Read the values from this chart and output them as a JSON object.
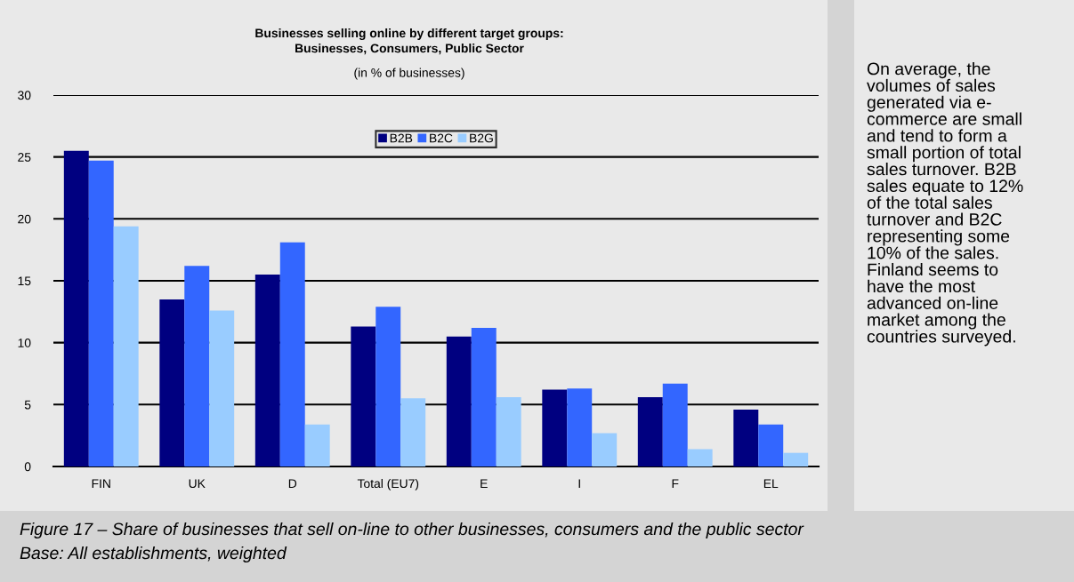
{
  "chart_data": {
    "type": "bar",
    "title": "Businesses selling online by different target groups:\nBusinesses, Consumers, Public Sector",
    "subtitle": "(in % of businesses)",
    "categories": [
      "FIN",
      "UK",
      "D",
      "Total (EU7)",
      "E",
      "I",
      "F",
      "EL"
    ],
    "series": [
      {
        "name": "B2B",
        "color": "#000080",
        "values": [
          25.5,
          13.5,
          15.5,
          11.3,
          10.5,
          6.2,
          5.6,
          4.6
        ]
      },
      {
        "name": "B2C",
        "color": "#3366ff",
        "values": [
          24.7,
          16.2,
          18.1,
          12.9,
          11.2,
          6.3,
          6.7,
          3.4
        ]
      },
      {
        "name": "B2G",
        "color": "#99ccff",
        "values": [
          19.4,
          12.6,
          3.4,
          5.5,
          5.6,
          2.7,
          1.4,
          1.1
        ]
      }
    ],
    "ylim": [
      0,
      30
    ],
    "yticks": [
      0,
      5,
      10,
      15,
      20,
      25,
      30
    ],
    "grid": "y",
    "legend": "top",
    "annotations": [
      "On average, the\nvolumes of sales\ngenerated via e-\ncommerce are small\nand tend to form a\nsmall portion of total\nsales turnover. B2B\nsales equate to 12%\nof the total sales\nturnover and B2C\nrepresenting some\n10% of the sales.\nFinland seems to\nhave the most\nadvanced on-line\nmarket among the\ncountries surveyed.",
      "Figure 17 – Share of businesses that sell on-line to other businesses, consumers and the public sector",
      "Base: All establishments, weighted"
    ]
  }
}
